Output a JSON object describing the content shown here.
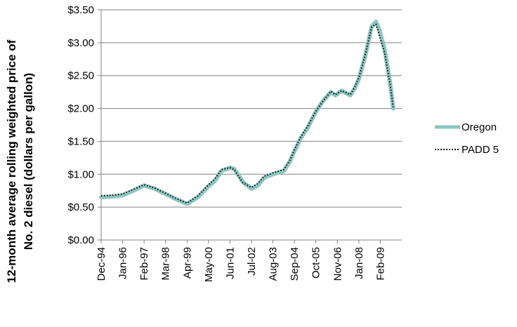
{
  "chart_data": {
    "type": "line",
    "title": "",
    "xlabel": "",
    "ylabel_lines": [
      "12-month average rolling weighted price of",
      "No. 2 diesel (dollars per gallon)"
    ],
    "x_tick_labels": [
      "Dec-94",
      "Jan-96",
      "Feb-97",
      "Mar-98",
      "Apr-99",
      "May-00",
      "Jun-01",
      "Jul-02",
      "Aug-03",
      "Sep-04",
      "Oct-05",
      "Nov-06",
      "Jan-08",
      "Feb-09"
    ],
    "x_tick_positions": [
      0,
      1,
      2,
      3,
      4,
      5,
      6,
      7,
      8,
      9,
      10,
      11,
      12,
      13
    ],
    "x_range": [
      0,
      14
    ],
    "ylim": [
      0,
      3.5
    ],
    "y_ticks": [
      0,
      0.5,
      1.0,
      1.5,
      2.0,
      2.5,
      3.0,
      3.5
    ],
    "y_tick_labels": [
      "$0.00",
      "$0.50",
      "$1.00",
      "$1.50",
      "$2.00",
      "$2.50",
      "$3.00",
      "$3.50"
    ],
    "grid": true,
    "legend_position": "right",
    "colors": {
      "oregon": "#8ec5c0",
      "padd5": "#000000",
      "grid": "#808080"
    },
    "series": [
      {
        "name": "Oregon",
        "style": "solid",
        "points": [
          [
            0,
            0.65
          ],
          [
            0.5,
            0.66
          ],
          [
            1,
            0.68
          ],
          [
            1.5,
            0.75
          ],
          [
            2,
            0.83
          ],
          [
            2.5,
            0.78
          ],
          [
            3,
            0.7
          ],
          [
            3.5,
            0.62
          ],
          [
            4,
            0.55
          ],
          [
            4.5,
            0.65
          ],
          [
            5,
            0.82
          ],
          [
            5.3,
            0.9
          ],
          [
            5.6,
            1.05
          ],
          [
            6,
            1.1
          ],
          [
            6.2,
            1.08
          ],
          [
            6.6,
            0.88
          ],
          [
            7,
            0.78
          ],
          [
            7.3,
            0.83
          ],
          [
            7.6,
            0.95
          ],
          [
            8,
            1.0
          ],
          [
            8.5,
            1.05
          ],
          [
            8.8,
            1.2
          ],
          [
            9,
            1.35
          ],
          [
            9.3,
            1.55
          ],
          [
            9.6,
            1.7
          ],
          [
            10,
            1.95
          ],
          [
            10.3,
            2.1
          ],
          [
            10.7,
            2.25
          ],
          [
            10.9,
            2.2
          ],
          [
            11,
            2.22
          ],
          [
            11.2,
            2.27
          ],
          [
            11.6,
            2.2
          ],
          [
            11.8,
            2.3
          ],
          [
            12,
            2.45
          ],
          [
            12.3,
            2.8
          ],
          [
            12.6,
            3.25
          ],
          [
            12.8,
            3.32
          ],
          [
            12.95,
            3.2
          ],
          [
            13.2,
            2.9
          ],
          [
            13.45,
            2.4
          ],
          [
            13.6,
            2.0
          ]
        ]
      },
      {
        "name": "PADD 5",
        "style": "dotted",
        "points": [
          [
            0,
            0.67
          ],
          [
            0.5,
            0.68
          ],
          [
            1,
            0.7
          ],
          [
            1.5,
            0.77
          ],
          [
            2,
            0.84
          ],
          [
            2.5,
            0.79
          ],
          [
            3,
            0.71
          ],
          [
            3.5,
            0.63
          ],
          [
            4,
            0.56
          ],
          [
            4.5,
            0.67
          ],
          [
            5,
            0.84
          ],
          [
            5.3,
            0.93
          ],
          [
            5.6,
            1.07
          ],
          [
            6,
            1.1
          ],
          [
            6.2,
            1.07
          ],
          [
            6.6,
            0.87
          ],
          [
            7,
            0.8
          ],
          [
            7.3,
            0.86
          ],
          [
            7.6,
            0.97
          ],
          [
            8,
            1.02
          ],
          [
            8.5,
            1.07
          ],
          [
            8.8,
            1.22
          ],
          [
            9,
            1.37
          ],
          [
            9.3,
            1.57
          ],
          [
            9.6,
            1.72
          ],
          [
            10,
            1.96
          ],
          [
            10.3,
            2.1
          ],
          [
            10.7,
            2.26
          ],
          [
            10.9,
            2.21
          ],
          [
            11,
            2.23
          ],
          [
            11.2,
            2.27
          ],
          [
            11.6,
            2.21
          ],
          [
            11.8,
            2.32
          ],
          [
            12,
            2.47
          ],
          [
            12.3,
            2.82
          ],
          [
            12.6,
            3.24
          ],
          [
            12.8,
            3.28
          ],
          [
            12.95,
            3.12
          ],
          [
            13.2,
            2.85
          ],
          [
            13.45,
            2.38
          ],
          [
            13.6,
            2.02
          ]
        ]
      }
    ]
  }
}
